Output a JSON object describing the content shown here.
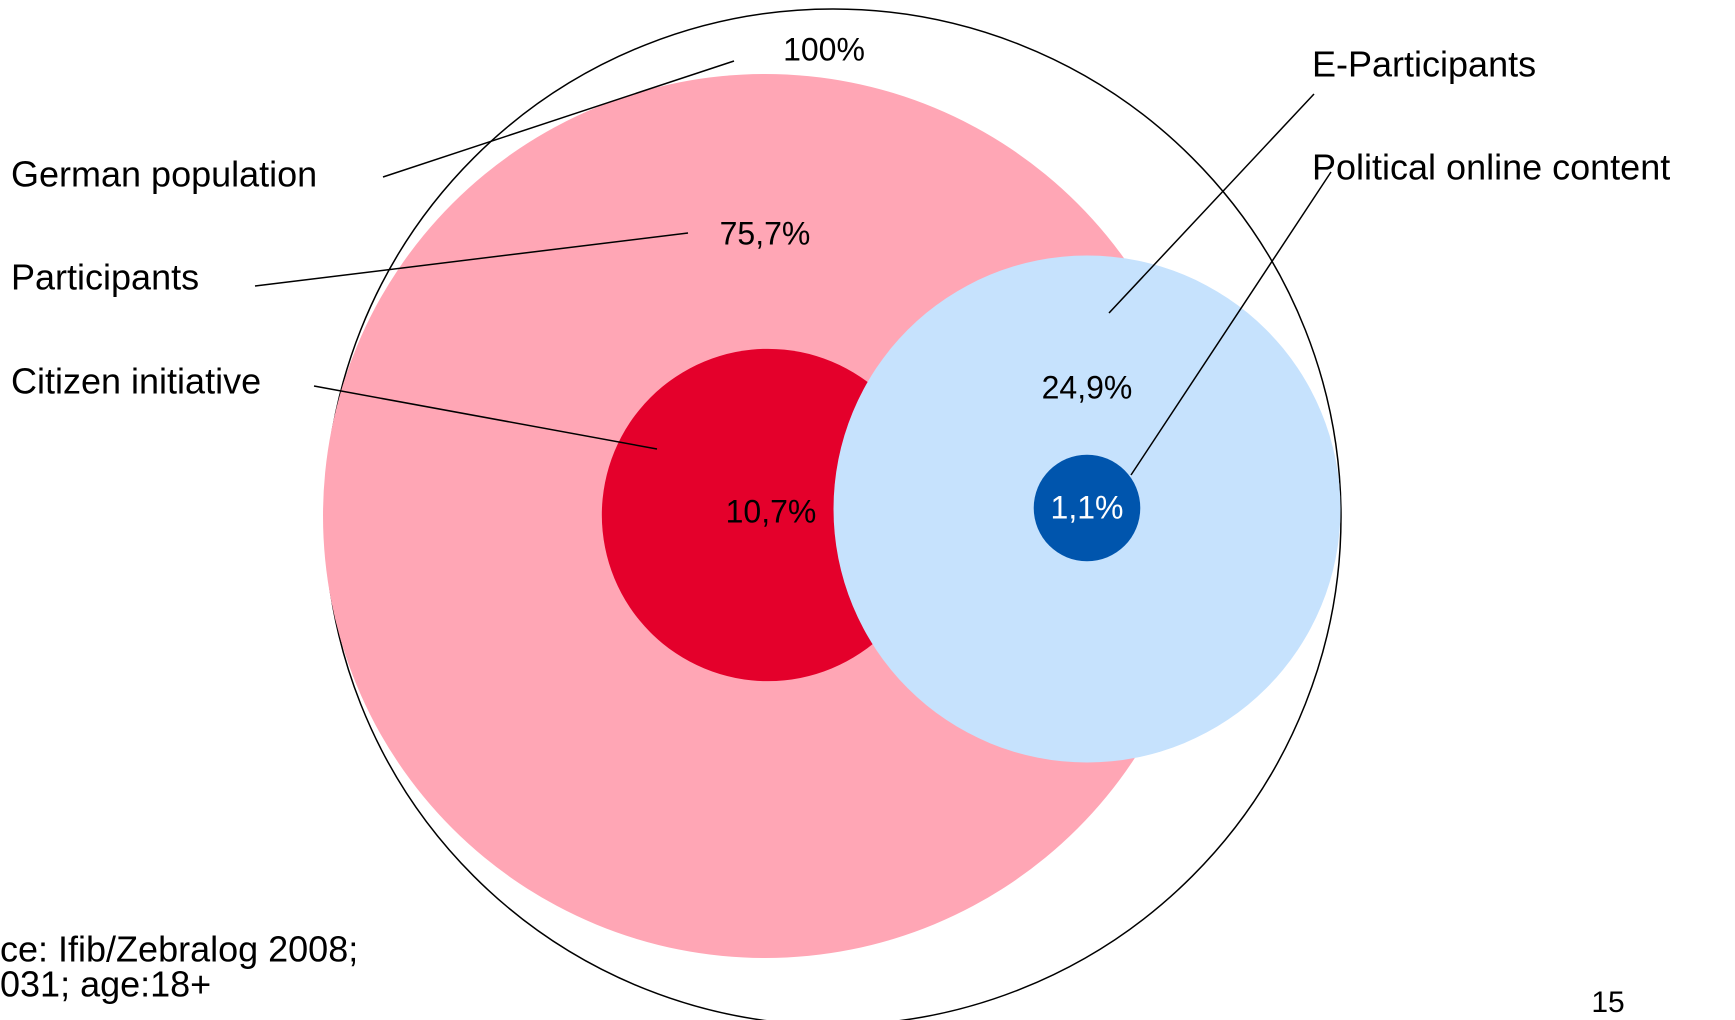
{
  "chart_data": {
    "type": "nested-circles",
    "categories": [
      "German population",
      "Participants",
      "Citizen initiative",
      "E-Participants",
      "Political online content"
    ],
    "values": [
      100,
      75.7,
      10.7,
      24.9,
      1.1
    ],
    "value_labels": [
      "100%",
      "75,7%",
      "10,7%",
      "24,9%",
      "1,1%"
    ],
    "colors": [
      "#ffffff",
      "#ffa6b5",
      "#e4002b",
      "#c6e2fd",
      "#0055ad"
    ],
    "source": [
      "ce: Ifib/Zebralog 2008;",
      "031; age:18+"
    ]
  },
  "page_number": "15"
}
